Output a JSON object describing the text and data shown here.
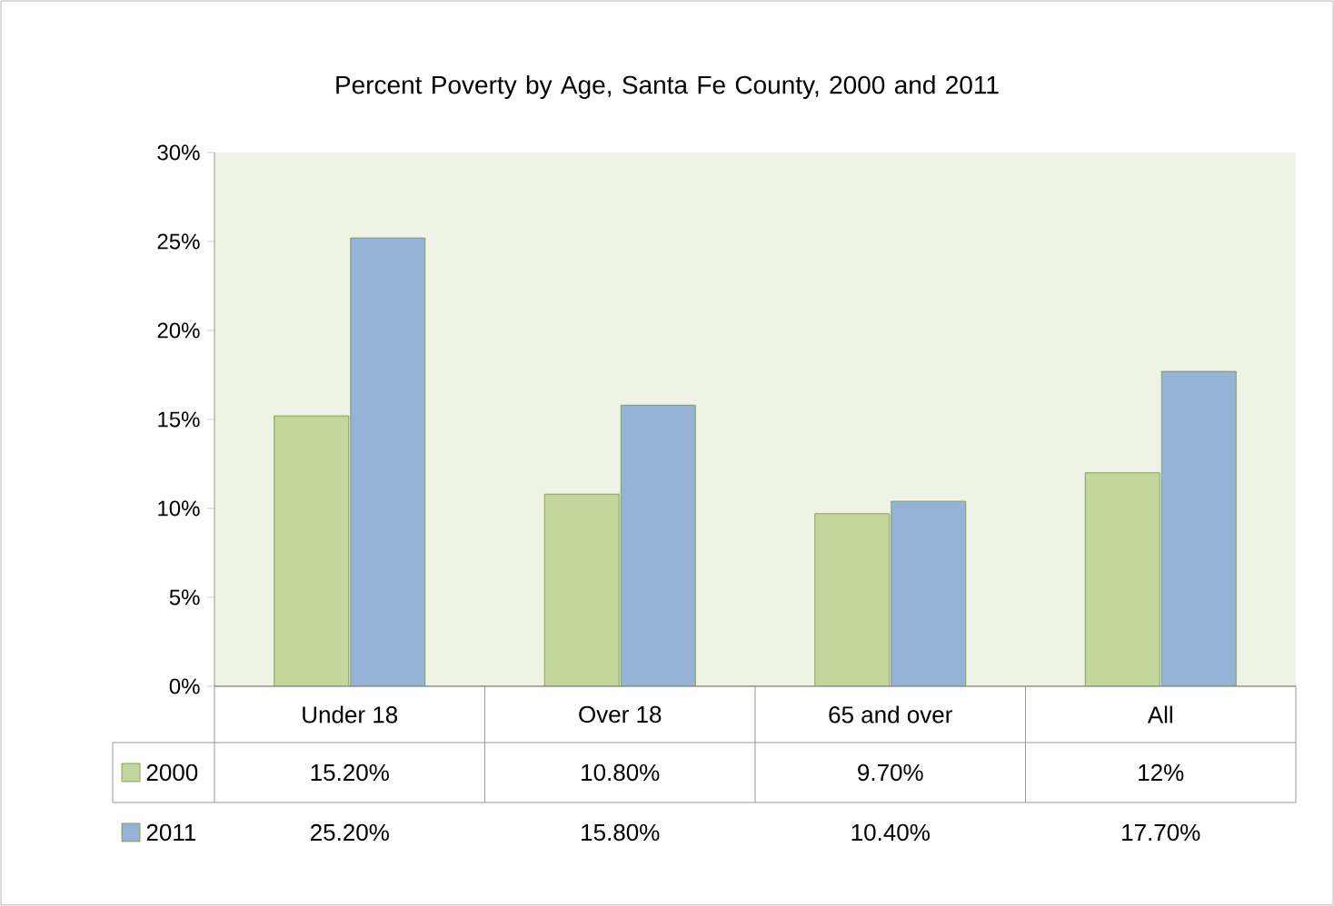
{
  "chart_data": {
    "type": "bar",
    "title": "Percent Poverty by Age, Santa Fe County, 2000 and 2011",
    "categories": [
      "Under 18",
      "Over 18",
      "65 and over",
      "All"
    ],
    "series": [
      {
        "name": "2000",
        "color": "#c3d69b",
        "values": [
          15.2,
          10.8,
          9.7,
          12
        ],
        "value_labels": [
          "15.20%",
          "10.80%",
          "9.70%",
          "12%"
        ]
      },
      {
        "name": "2011",
        "color": "#95b3d7",
        "values": [
          25.2,
          15.8,
          10.4,
          17.7
        ],
        "value_labels": [
          "25.20%",
          "15.80%",
          "10.40%",
          "17.70%"
        ]
      }
    ],
    "ylim": [
      0,
      30
    ],
    "yticks": [
      {
        "value": 0,
        "label": "0%"
      },
      {
        "value": 5,
        "label": "5%"
      },
      {
        "value": 10,
        "label": "10%"
      },
      {
        "value": 15,
        "label": "15%"
      },
      {
        "value": 20,
        "label": "20%"
      },
      {
        "value": 25,
        "label": "25%"
      },
      {
        "value": 30,
        "label": "30%"
      }
    ],
    "legend": "bottom"
  }
}
